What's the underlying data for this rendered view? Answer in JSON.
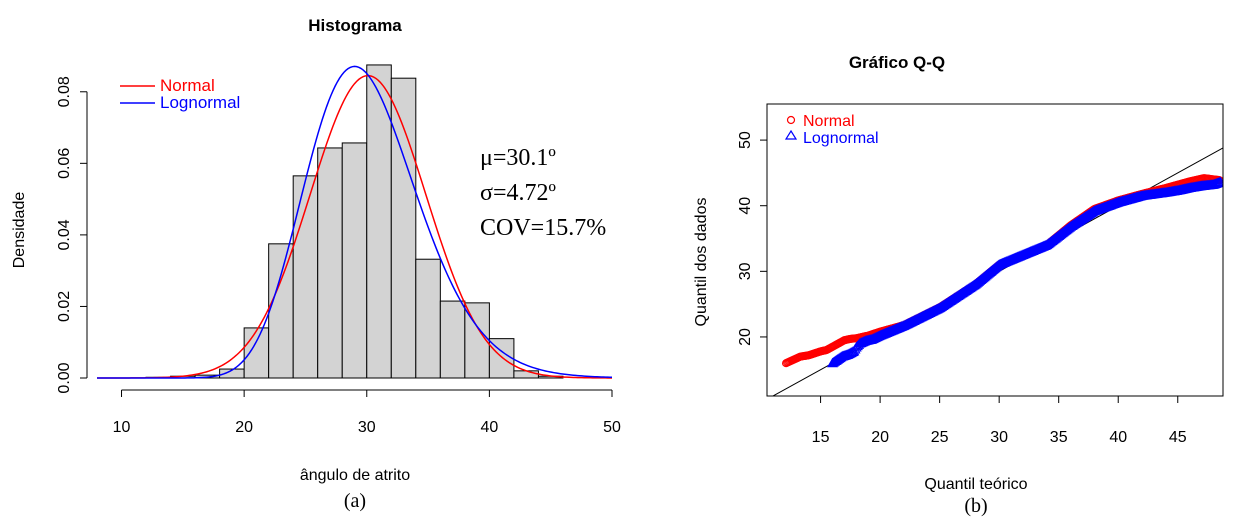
{
  "chart_data": [
    {
      "type": "bar",
      "panel_label": "(a)",
      "title": "Histograma",
      "xlabel": "ângulo de atrito",
      "ylabel": "Densidade",
      "xlim": [
        8,
        50
      ],
      "ylim": [
        0,
        0.09
      ],
      "xticks": [
        "10",
        "20",
        "30",
        "40",
        "50"
      ],
      "yticks": [
        "0.00",
        "0.02",
        "0.04",
        "0.06",
        "0.08"
      ],
      "bins": [
        {
          "x0": 12,
          "x1": 14,
          "density": 0.0002
        },
        {
          "x0": 14,
          "x1": 16,
          "density": 0.0005
        },
        {
          "x0": 16,
          "x1": 18,
          "density": 0.0008
        },
        {
          "x0": 18,
          "x1": 20,
          "density": 0.0025
        },
        {
          "x0": 20,
          "x1": 22,
          "density": 0.014
        },
        {
          "x0": 22,
          "x1": 24,
          "density": 0.0375
        },
        {
          "x0": 24,
          "x1": 26,
          "density": 0.0565
        },
        {
          "x0": 26,
          "x1": 28,
          "density": 0.0643
        },
        {
          "x0": 28,
          "x1": 30,
          "density": 0.0657
        },
        {
          "x0": 30,
          "x1": 32,
          "density": 0.0875
        },
        {
          "x0": 32,
          "x1": 34,
          "density": 0.0838
        },
        {
          "x0": 34,
          "x1": 36,
          "density": 0.0332
        },
        {
          "x0": 36,
          "x1": 38,
          "density": 0.0215
        },
        {
          "x0": 38,
          "x1": 40,
          "density": 0.021
        },
        {
          "x0": 40,
          "x1": 42,
          "density": 0.011
        },
        {
          "x0": 42,
          "x1": 44,
          "density": 0.002
        },
        {
          "x0": 44,
          "x1": 46,
          "density": 0.0005
        }
      ],
      "series": [
        {
          "name": "Normal",
          "color": "#ff0000",
          "kind": "normal",
          "mean": 30.1,
          "sd": 4.72
        },
        {
          "name": "Lognormal",
          "color": "#0000ff",
          "kind": "lognormal",
          "meanlog": 3.392,
          "sdlog": 0.156
        }
      ],
      "legend": {
        "position": "top-left",
        "entries": [
          "Normal",
          "Lognormal"
        ]
      },
      "annotations": [
        "μ=30.1º",
        "σ=4.72º",
        "COV=15.7%"
      ]
    },
    {
      "type": "scatter",
      "panel_label": "(b)",
      "title": "Gráfico Q-Q",
      "xlabel": "Quantil teórico",
      "ylabel": "Quantil dos dados",
      "xlim": [
        10.5,
        48.8
      ],
      "ylim": [
        11,
        55.5
      ],
      "xticks": [
        "15",
        "20",
        "25",
        "30",
        "35",
        "40",
        "45"
      ],
      "yticks": [
        "20",
        "30",
        "40",
        "50"
      ],
      "reference_line": {
        "slope": 1,
        "intercept": 0
      },
      "series": [
        {
          "name": "Normal",
          "color": "#ff0000",
          "marker": "circle",
          "points": [
            [
              12.1,
              16.0
            ],
            [
              13.3,
              17.0
            ],
            [
              14.0,
              17.2
            ],
            [
              14.5,
              17.5
            ],
            [
              15.0,
              17.8
            ],
            [
              15.5,
              18.0
            ],
            [
              16.0,
              18.5
            ],
            [
              16.5,
              19.0
            ],
            [
              17.0,
              19.5
            ],
            [
              17.5,
              19.7
            ],
            [
              18.0,
              19.8
            ],
            [
              19.0,
              20.2
            ],
            [
              20.0,
              20.8
            ],
            [
              22.0,
              21.8
            ],
            [
              25.0,
              24.5
            ],
            [
              28.0,
              28.0
            ],
            [
              30.0,
              31.0
            ],
            [
              32.0,
              32.5
            ],
            [
              34.0,
              34.0
            ],
            [
              36.0,
              37.0
            ],
            [
              38.0,
              39.5
            ],
            [
              40.0,
              40.8
            ],
            [
              42.0,
              41.8
            ],
            [
              44.0,
              42.7
            ],
            [
              45.0,
              43.2
            ],
            [
              46.0,
              43.7
            ],
            [
              47.2,
              44.2
            ],
            [
              48.5,
              43.9
            ]
          ]
        },
        {
          "name": "Lognormal",
          "color": "#0000ff",
          "marker": "triangle",
          "points": [
            [
              16.0,
              16.0
            ],
            [
              16.8,
              17.0
            ],
            [
              17.3,
              17.3
            ],
            [
              17.8,
              17.8
            ],
            [
              18.0,
              18.4
            ],
            [
              18.3,
              19.0
            ],
            [
              18.8,
              19.4
            ],
            [
              19.3,
              19.6
            ],
            [
              20.0,
              20.2
            ],
            [
              22.0,
              21.7
            ],
            [
              25.0,
              24.4
            ],
            [
              28.0,
              28.0
            ],
            [
              30.0,
              31.0
            ],
            [
              32.0,
              32.5
            ],
            [
              34.0,
              34.0
            ],
            [
              36.0,
              36.8
            ],
            [
              38.0,
              39.2
            ],
            [
              40.0,
              40.5
            ],
            [
              42.0,
              41.5
            ],
            [
              44.0,
              42.0
            ],
            [
              45.0,
              42.3
            ],
            [
              46.0,
              42.7
            ],
            [
              47.0,
              43.0
            ],
            [
              48.0,
              43.2
            ],
            [
              48.6,
              43.6
            ]
          ]
        }
      ],
      "legend": {
        "position": "top-left",
        "entries": [
          "Normal",
          "Lognormal"
        ]
      }
    }
  ]
}
